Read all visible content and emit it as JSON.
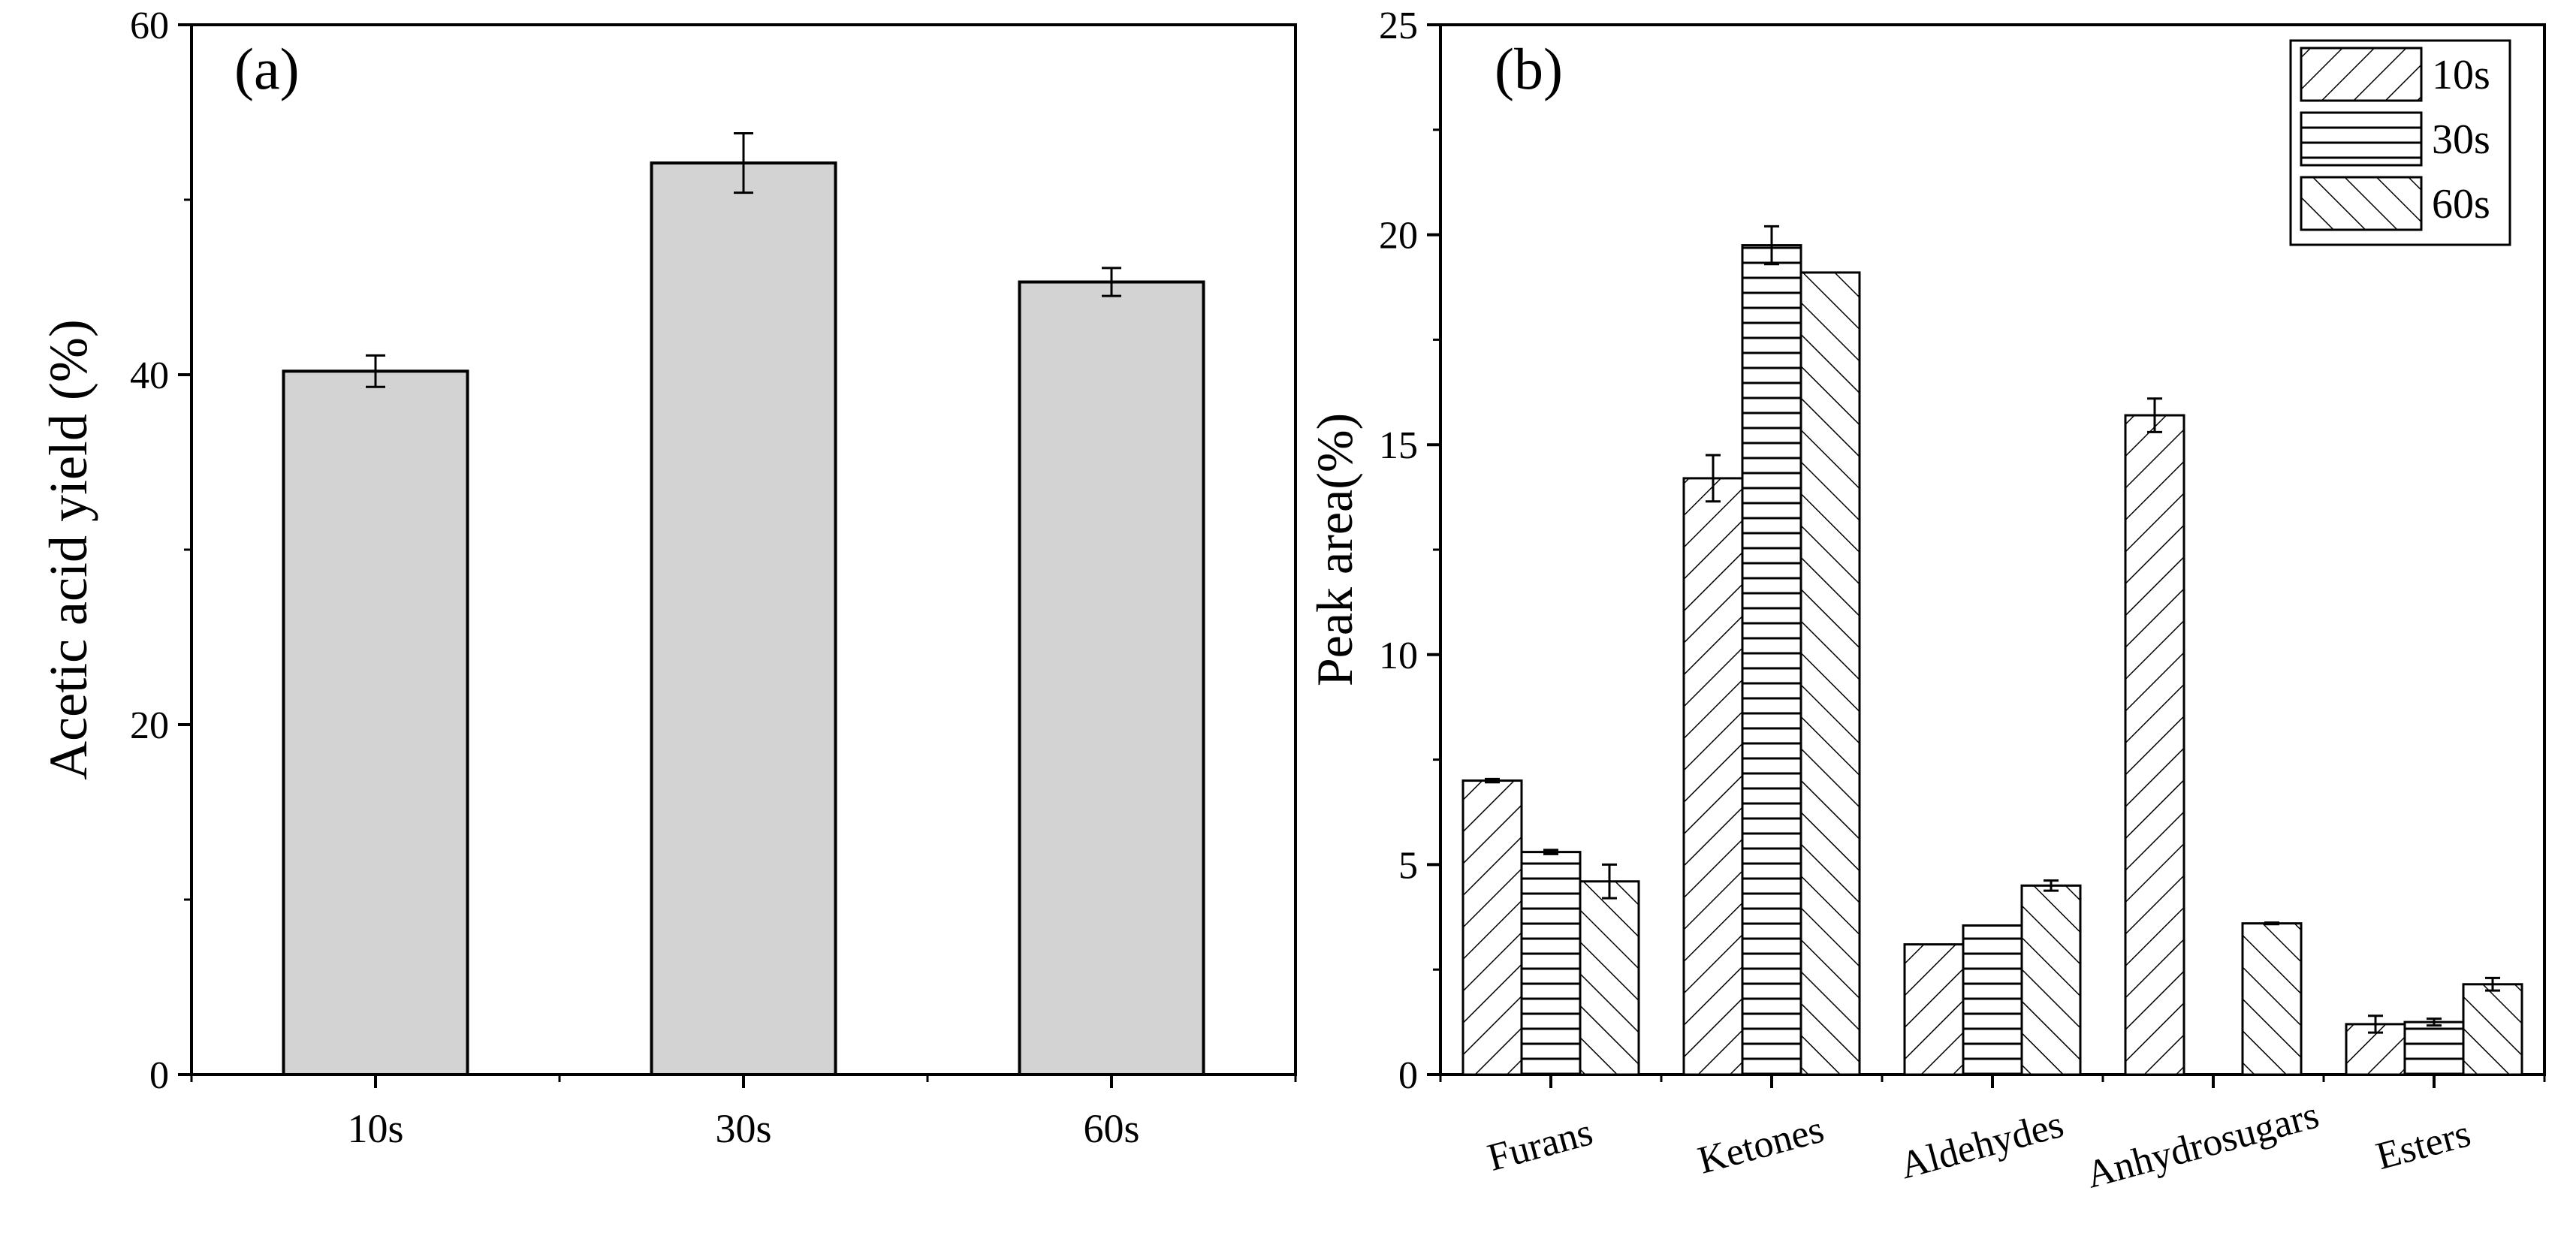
{
  "colors": {
    "bar_fill_a": "#d3d3d3",
    "stroke": "#000000",
    "background": "#ffffff"
  },
  "chart_data": [
    {
      "panel_label": "(a)",
      "type": "bar",
      "categories": [
        "10s",
        "30s",
        "60s"
      ],
      "values": [
        40.2,
        52.1,
        45.3
      ],
      "errors": [
        0.9,
        1.7,
        0.8
      ],
      "title": "",
      "xlabel": "",
      "ylabel": "Acetic acid yield (%)",
      "ylim": [
        0,
        60
      ],
      "yticks": [
        0,
        20,
        40,
        60
      ],
      "grid": false,
      "legend": null
    },
    {
      "panel_label": "(b)",
      "type": "bar",
      "categories": [
        "Furans",
        "Ketones",
        "Aldehydes",
        "Anhydrosugars",
        "Esters"
      ],
      "series": [
        {
          "name": "10s",
          "pattern": "forward-diagonal",
          "values": [
            7.0,
            14.2,
            3.1,
            15.7,
            1.2
          ],
          "errors": [
            0.04,
            0.55,
            0.0,
            0.4,
            0.2
          ]
        },
        {
          "name": "30s",
          "pattern": "horizontal",
          "values": [
            5.3,
            19.75,
            3.55,
            null,
            1.25
          ],
          "errors": [
            0.05,
            0.45,
            0.0,
            null,
            0.08
          ]
        },
        {
          "name": "60s",
          "pattern": "back-diagonal",
          "values": [
            4.6,
            19.1,
            4.5,
            3.6,
            2.15
          ],
          "errors": [
            0.4,
            0.0,
            0.12,
            0.02,
            0.15
          ]
        }
      ],
      "title": "",
      "xlabel": "",
      "ylabel": "Peak area(%)",
      "ylim": [
        0,
        25
      ],
      "yticks": [
        0,
        5,
        10,
        15,
        20,
        25
      ],
      "grid": false,
      "legend": "top-right"
    }
  ]
}
